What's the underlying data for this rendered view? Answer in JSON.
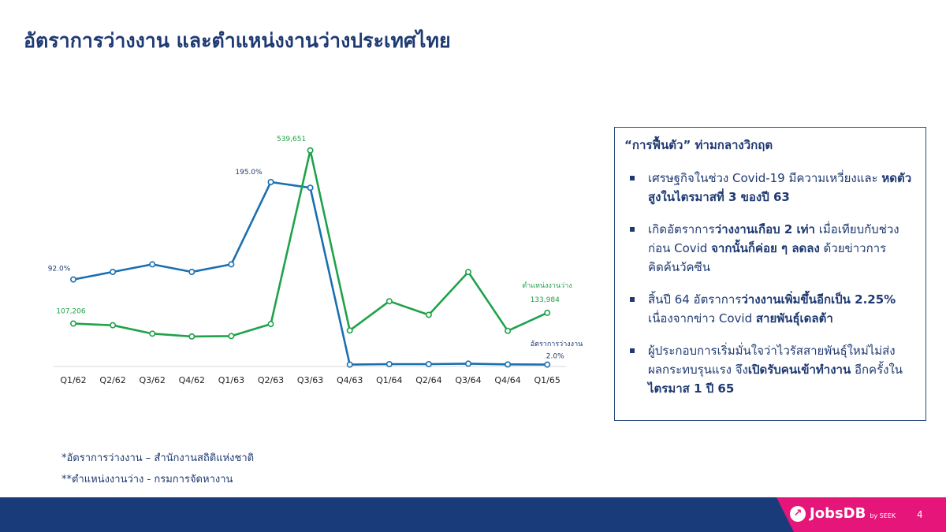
{
  "title": "อัตราการว่างงาน และตำแหน่งงานว่างประเทศไทย",
  "colors": {
    "unemployment": "#1a6faf",
    "vacancies": "#1fa24a",
    "navy": "#1a3b7a",
    "magenta": "#e6157a"
  },
  "chart_data": {
    "type": "line",
    "categories": [
      "Q1/62",
      "Q2/62",
      "Q3/62",
      "Q4/62",
      "Q1/63",
      "Q2/63",
      "Q3/63",
      "Q4/63",
      "Q1/64",
      "Q2/64",
      "Q3/64",
      "Q4/64",
      "Q1/65"
    ],
    "series": [
      {
        "name": "อัตราการว่างงาน",
        "color": "#1a6faf",
        "values": [
          92.0,
          100,
          108,
          100,
          108,
          195.0,
          189,
          2.0,
          2.5,
          2.5,
          3,
          2.2,
          2.0
        ],
        "labels": {
          "0": "92.0%",
          "5": "195.0%",
          "12": "2.0%"
        }
      },
      {
        "name": "ตำแหน่งงานว่าง",
        "color": "#1fa24a",
        "values": [
          107206,
          103000,
          82000,
          75000,
          76000,
          106000,
          539651,
          90000,
          163000,
          129000,
          236000,
          89000,
          133984
        ],
        "labels": {
          "0": "107,206",
          "6": "539,651",
          "12": "133,984"
        }
      }
    ]
  },
  "panel": {
    "title": "“การฟื้นตัว” ท่ามกลางวิกฤต",
    "b1_a": "เศรษฐกิจในช่วง Covid-19 มีความเหวี่ยงและ ",
    "b1_b": "หดตัวสูงในไตรมาสที่ 3 ของปี 63",
    "b2_a": "เกิดอัตราการ",
    "b2_b": "ว่างงานเกือบ 2 เท่า",
    "b2_c": " เมื่อเทียบกับช่วงก่อน Covid ",
    "b2_d": "จากนั้นก็ค่อย ๆ ลดลง",
    "b2_e": " ด้วยข่าวการคิดค้นวัคซีน",
    "b3_a": "สิ้นปี 64 อัตราการ",
    "b3_b": "ว่างงานเพิ่มขึ้นอีกเป็น 2.25%",
    "b3_c": " เนื่องจากข่าว Covid ",
    "b3_d": "สายพันธุ์เดลต้า",
    "b4_a": "ผู้ประกอบการเริ่มมั่นใจว่าไวรัสสายพันธุ์ใหม่ไม่ส่งผลกระทบรุนแรง จึง",
    "b4_b": "เปิดรับคนเข้าทำงาน",
    "b4_c": " อีกครั้งใน",
    "b4_d": "ไตรมาส 1 ปี 65"
  },
  "footnotes": {
    "f1": "*อัตราการว่างงาน – สำนักงานสถิติแห่งชาติ",
    "f2": "**ตำแหน่งงานว่าง - กรมการจัดหางาน"
  },
  "footer": {
    "brand": "JobsDB",
    "brand_sub": "by SEEK",
    "page": "4"
  }
}
